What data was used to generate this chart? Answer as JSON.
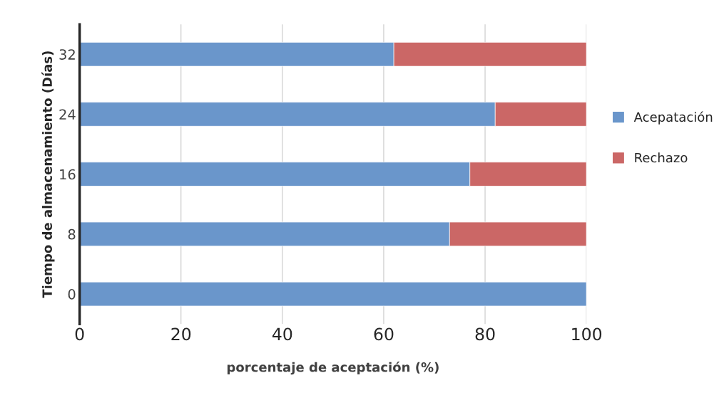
{
  "chart_data": {
    "type": "bar",
    "orientation": "horizontal",
    "stacked": true,
    "ylabel": "Tiempo de almacenamiento (Días)",
    "xlabel": "porcentaje de aceptación (%)",
    "categories": [
      "32",
      "24",
      "16",
      "8",
      "0"
    ],
    "series": [
      {
        "name": "Acepatación",
        "color": "#6a96cb",
        "values": [
          62,
          82,
          77,
          73,
          100
        ]
      },
      {
        "name": "Rechazo",
        "color": "#cb6766",
        "values": [
          38,
          18,
          23,
          27,
          null
        ]
      }
    ],
    "xlim": [
      0,
      100
    ],
    "xticks": [
      0,
      20,
      40,
      60,
      80,
      100
    ],
    "grid": "x",
    "legend": "right"
  }
}
